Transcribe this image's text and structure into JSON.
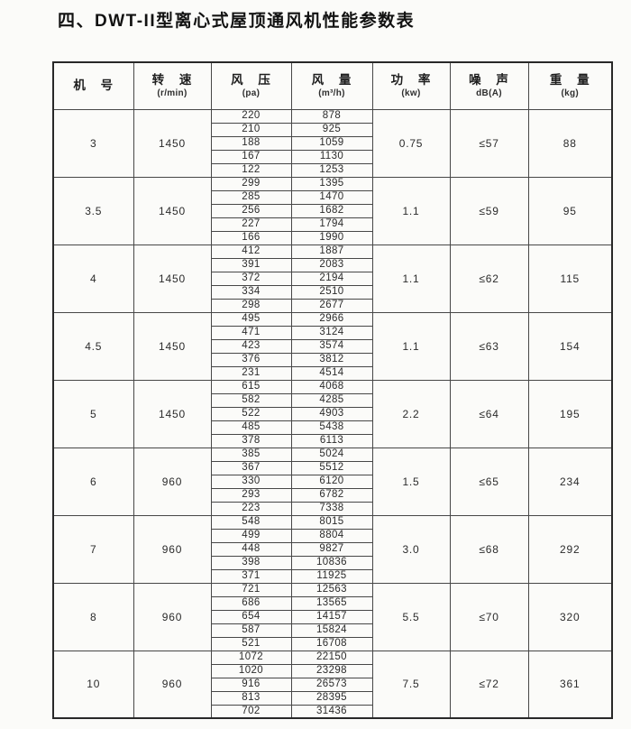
{
  "page": {
    "title": "四、DWT-II型离心式屋顶通风机性能参数表"
  },
  "table": {
    "columns": [
      {
        "label": "机 号",
        "unit": ""
      },
      {
        "label": "转 速",
        "unit": "(r/min)"
      },
      {
        "label": "风 压",
        "unit": "(pa)"
      },
      {
        "label": "风 量",
        "unit": "(m³/h)"
      },
      {
        "label": "功 率",
        "unit": "(kw)"
      },
      {
        "label": "噪 声",
        "unit": "dB(A)"
      },
      {
        "label": "重 量",
        "unit": "(kg)"
      }
    ],
    "rows": [
      {
        "machine_no": "3",
        "speed": "1450",
        "pressure": [
          "220",
          "210",
          "188",
          "167",
          "122"
        ],
        "volume": [
          "878",
          "925",
          "1059",
          "1130",
          "1253"
        ],
        "power": "0.75",
        "noise": "≤57",
        "weight": "88"
      },
      {
        "machine_no": "3.5",
        "speed": "1450",
        "pressure": [
          "299",
          "285",
          "256",
          "227",
          "166"
        ],
        "volume": [
          "1395",
          "1470",
          "1682",
          "1794",
          "1990"
        ],
        "power": "1.1",
        "noise": "≤59",
        "weight": "95"
      },
      {
        "machine_no": "4",
        "speed": "1450",
        "pressure": [
          "412",
          "391",
          "372",
          "334",
          "298"
        ],
        "volume": [
          "1887",
          "2083",
          "2194",
          "2510",
          "2677"
        ],
        "power": "1.1",
        "noise": "≤62",
        "weight": "115"
      },
      {
        "machine_no": "4.5",
        "speed": "1450",
        "pressure": [
          "495",
          "471",
          "423",
          "376",
          "231"
        ],
        "volume": [
          "2966",
          "3124",
          "3574",
          "3812",
          "4514"
        ],
        "power": "1.1",
        "noise": "≤63",
        "weight": "154"
      },
      {
        "machine_no": "5",
        "speed": "1450",
        "pressure": [
          "615",
          "582",
          "522",
          "485",
          "378"
        ],
        "volume": [
          "4068",
          "4285",
          "4903",
          "5438",
          "6113"
        ],
        "power": "2.2",
        "noise": "≤64",
        "weight": "195"
      },
      {
        "machine_no": "6",
        "speed": "960",
        "pressure": [
          "385",
          "367",
          "330",
          "293",
          "223"
        ],
        "volume": [
          "5024",
          "5512",
          "6120",
          "6782",
          "7338"
        ],
        "power": "1.5",
        "noise": "≤65",
        "weight": "234"
      },
      {
        "machine_no": "7",
        "speed": "960",
        "pressure": [
          "548",
          "499",
          "448",
          "398",
          "371"
        ],
        "volume": [
          "8015",
          "8804",
          "9827",
          "10836",
          "11925"
        ],
        "power": "3.0",
        "noise": "≤68",
        "weight": "292"
      },
      {
        "machine_no": "8",
        "speed": "960",
        "pressure": [
          "721",
          "686",
          "654",
          "587",
          "521"
        ],
        "volume": [
          "12563",
          "13565",
          "14157",
          "15824",
          "16708"
        ],
        "power": "5.5",
        "noise": "≤70",
        "weight": "320"
      },
      {
        "machine_no": "10",
        "speed": "960",
        "pressure": [
          "1072",
          "1020",
          "916",
          "813",
          "702"
        ],
        "volume": [
          "22150",
          "23298",
          "26573",
          "28395",
          "31436"
        ],
        "power": "7.5",
        "noise": "≤72",
        "weight": "361"
      }
    ]
  }
}
